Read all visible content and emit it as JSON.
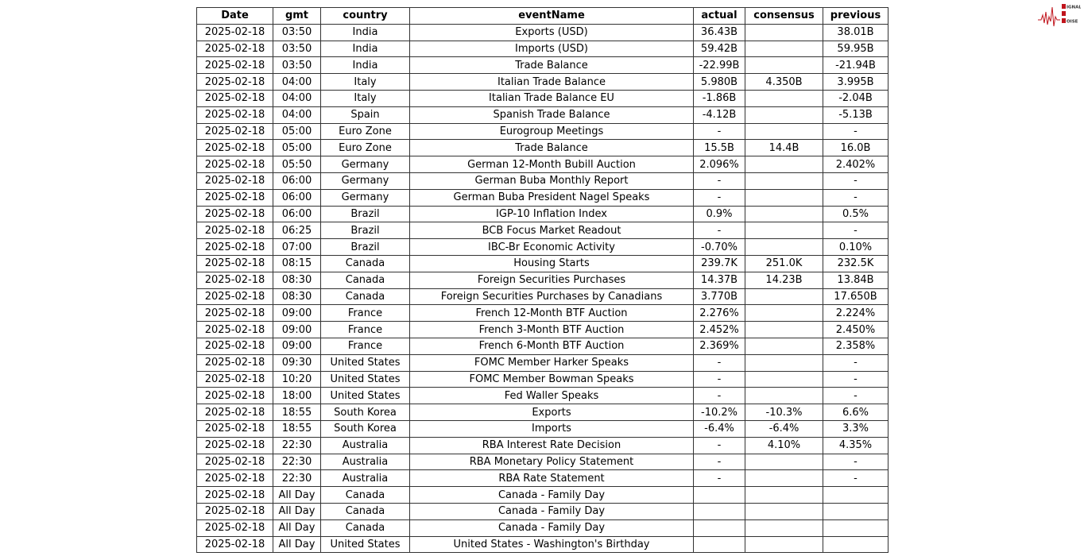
{
  "logo": {
    "text": "SIGNAL 2 NOISE",
    "accent": "#c0141c"
  },
  "table": {
    "columns": [
      "Date",
      "gmt",
      "country",
      "eventName",
      "actual",
      "consensus",
      "previous"
    ],
    "rows": [
      [
        "2025-02-18",
        "03:50",
        "India",
        "Exports (USD)",
        "36.43B",
        "",
        "38.01B"
      ],
      [
        "2025-02-18",
        "03:50",
        "India",
        "Imports (USD)",
        "59.42B",
        "",
        "59.95B"
      ],
      [
        "2025-02-18",
        "03:50",
        "India",
        "Trade Balance",
        "-22.99B",
        "",
        "-21.94B"
      ],
      [
        "2025-02-18",
        "04:00",
        "Italy",
        "Italian Trade Balance",
        "5.980B",
        "4.350B",
        "3.995B"
      ],
      [
        "2025-02-18",
        "04:00",
        "Italy",
        "Italian Trade Balance EU",
        "-1.86B",
        "",
        "-2.04B"
      ],
      [
        "2025-02-18",
        "04:00",
        "Spain",
        "Spanish Trade Balance",
        "-4.12B",
        "",
        "-5.13B"
      ],
      [
        "2025-02-18",
        "05:00",
        "Euro Zone",
        "Eurogroup Meetings",
        "-",
        "",
        "-"
      ],
      [
        "2025-02-18",
        "05:00",
        "Euro Zone",
        "Trade Balance",
        "15.5B",
        "14.4B",
        "16.0B"
      ],
      [
        "2025-02-18",
        "05:50",
        "Germany",
        "German 12-Month Bubill Auction",
        "2.096%",
        "",
        "2.402%"
      ],
      [
        "2025-02-18",
        "06:00",
        "Germany",
        "German Buba Monthly Report",
        "-",
        "",
        "-"
      ],
      [
        "2025-02-18",
        "06:00",
        "Germany",
        "German Buba President Nagel Speaks",
        "-",
        "",
        "-"
      ],
      [
        "2025-02-18",
        "06:00",
        "Brazil",
        "IGP-10 Inflation Index",
        "0.9%",
        "",
        "0.5%"
      ],
      [
        "2025-02-18",
        "06:25",
        "Brazil",
        "BCB Focus Market Readout",
        "-",
        "",
        "-"
      ],
      [
        "2025-02-18",
        "07:00",
        "Brazil",
        "IBC-Br Economic Activity",
        "-0.70%",
        "",
        "0.10%"
      ],
      [
        "2025-02-18",
        "08:15",
        "Canada",
        "Housing Starts",
        "239.7K",
        "251.0K",
        "232.5K"
      ],
      [
        "2025-02-18",
        "08:30",
        "Canada",
        "Foreign Securities Purchases",
        "14.37B",
        "14.23B",
        "13.84B"
      ],
      [
        "2025-02-18",
        "08:30",
        "Canada",
        "Foreign Securities Purchases by Canadians",
        "3.770B",
        "",
        "17.650B"
      ],
      [
        "2025-02-18",
        "09:00",
        "France",
        "French 12-Month BTF Auction",
        "2.276%",
        "",
        "2.224%"
      ],
      [
        "2025-02-18",
        "09:00",
        "France",
        "French 3-Month BTF Auction",
        "2.452%",
        "",
        "2.450%"
      ],
      [
        "2025-02-18",
        "09:00",
        "France",
        "French 6-Month BTF Auction",
        "2.369%",
        "",
        "2.358%"
      ],
      [
        "2025-02-18",
        "09:30",
        "United States",
        "FOMC Member Harker Speaks",
        "-",
        "",
        "-"
      ],
      [
        "2025-02-18",
        "10:20",
        "United States",
        "FOMC Member Bowman Speaks",
        "-",
        "",
        "-"
      ],
      [
        "2025-02-18",
        "18:00",
        "United States",
        "Fed Waller Speaks",
        "-",
        "",
        "-"
      ],
      [
        "2025-02-18",
        "18:55",
        "South Korea",
        "Exports",
        "-10.2%",
        "-10.3%",
        "6.6%"
      ],
      [
        "2025-02-18",
        "18:55",
        "South Korea",
        "Imports",
        "-6.4%",
        "-6.4%",
        "3.3%"
      ],
      [
        "2025-02-18",
        "22:30",
        "Australia",
        "RBA Interest Rate Decision",
        "-",
        "4.10%",
        "4.35%"
      ],
      [
        "2025-02-18",
        "22:30",
        "Australia",
        "RBA Monetary Policy Statement",
        "-",
        "",
        "-"
      ],
      [
        "2025-02-18",
        "22:30",
        "Australia",
        "RBA Rate Statement",
        "-",
        "",
        "-"
      ],
      [
        "2025-02-18",
        "All Day",
        "Canada",
        "Canada - Family Day",
        "",
        "",
        ""
      ],
      [
        "2025-02-18",
        "All Day",
        "Canada",
        "Canada - Family Day",
        "",
        "",
        ""
      ],
      [
        "2025-02-18",
        "All Day",
        "Canada",
        "Canada - Family Day",
        "",
        "",
        ""
      ],
      [
        "2025-02-18",
        "All Day",
        "United States",
        "United States - Washington's Birthday",
        "",
        "",
        ""
      ]
    ]
  }
}
